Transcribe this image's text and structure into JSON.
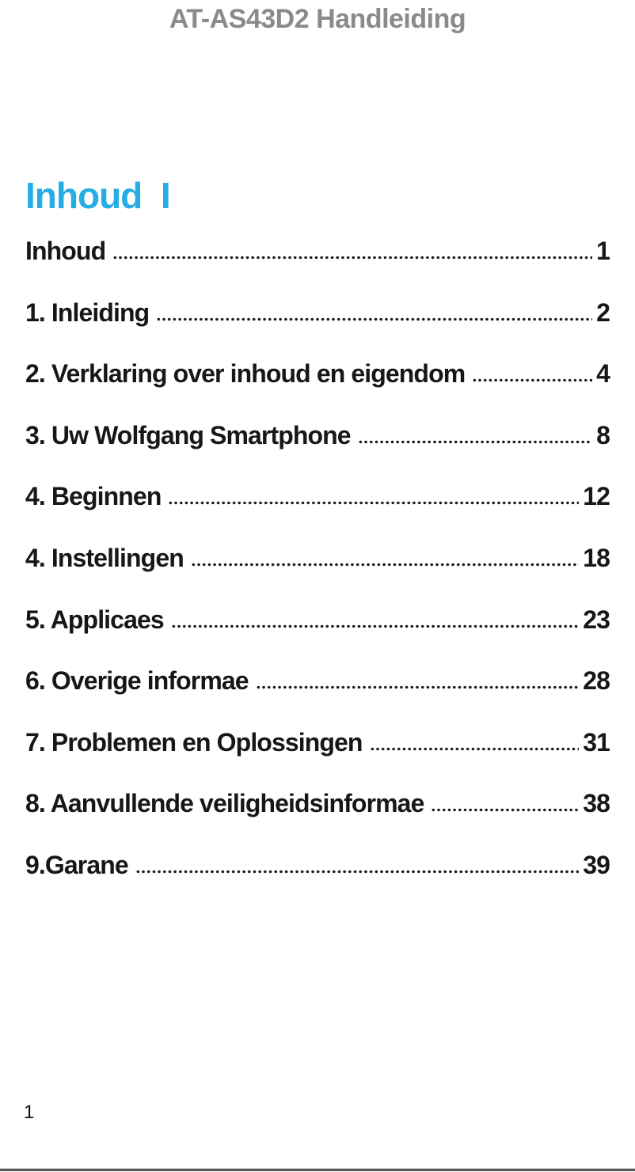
{
  "page": {
    "header_title": "AT-AS43D2 Handleiding",
    "footer_page_number": "1"
  },
  "toc": {
    "heading": "Inhoud  I",
    "entries": [
      {
        "label": "Inhoud",
        "page": "1"
      },
      {
        "label": "1. Inleiding",
        "page": "2"
      },
      {
        "label": "2. Verklaring over inhoud en eigendom",
        "page": "4"
      },
      {
        "label": "3. Uw Wolfgang Smartphone",
        "page": "8"
      },
      {
        "label": "4. Beginnen",
        "page": "12"
      },
      {
        "label": "4. Instellingen",
        "page": "18"
      },
      {
        "label": "5. Applicaes",
        "page": "23"
      },
      {
        "label": "6. Overige informae",
        "page": "28"
      },
      {
        "label": "7. Problemen en Oplossingen",
        "page": "31"
      },
      {
        "label": "8. Aanvullende veiligheidsinformae",
        "page": "38"
      },
      {
        "label": "9.Garane",
        "page": "39"
      }
    ]
  },
  "colors": {
    "heading_accent": "#25ade4",
    "header_gray": "#8a8a8a",
    "body_text": "#171717",
    "bottom_rule": "#54575b"
  }
}
